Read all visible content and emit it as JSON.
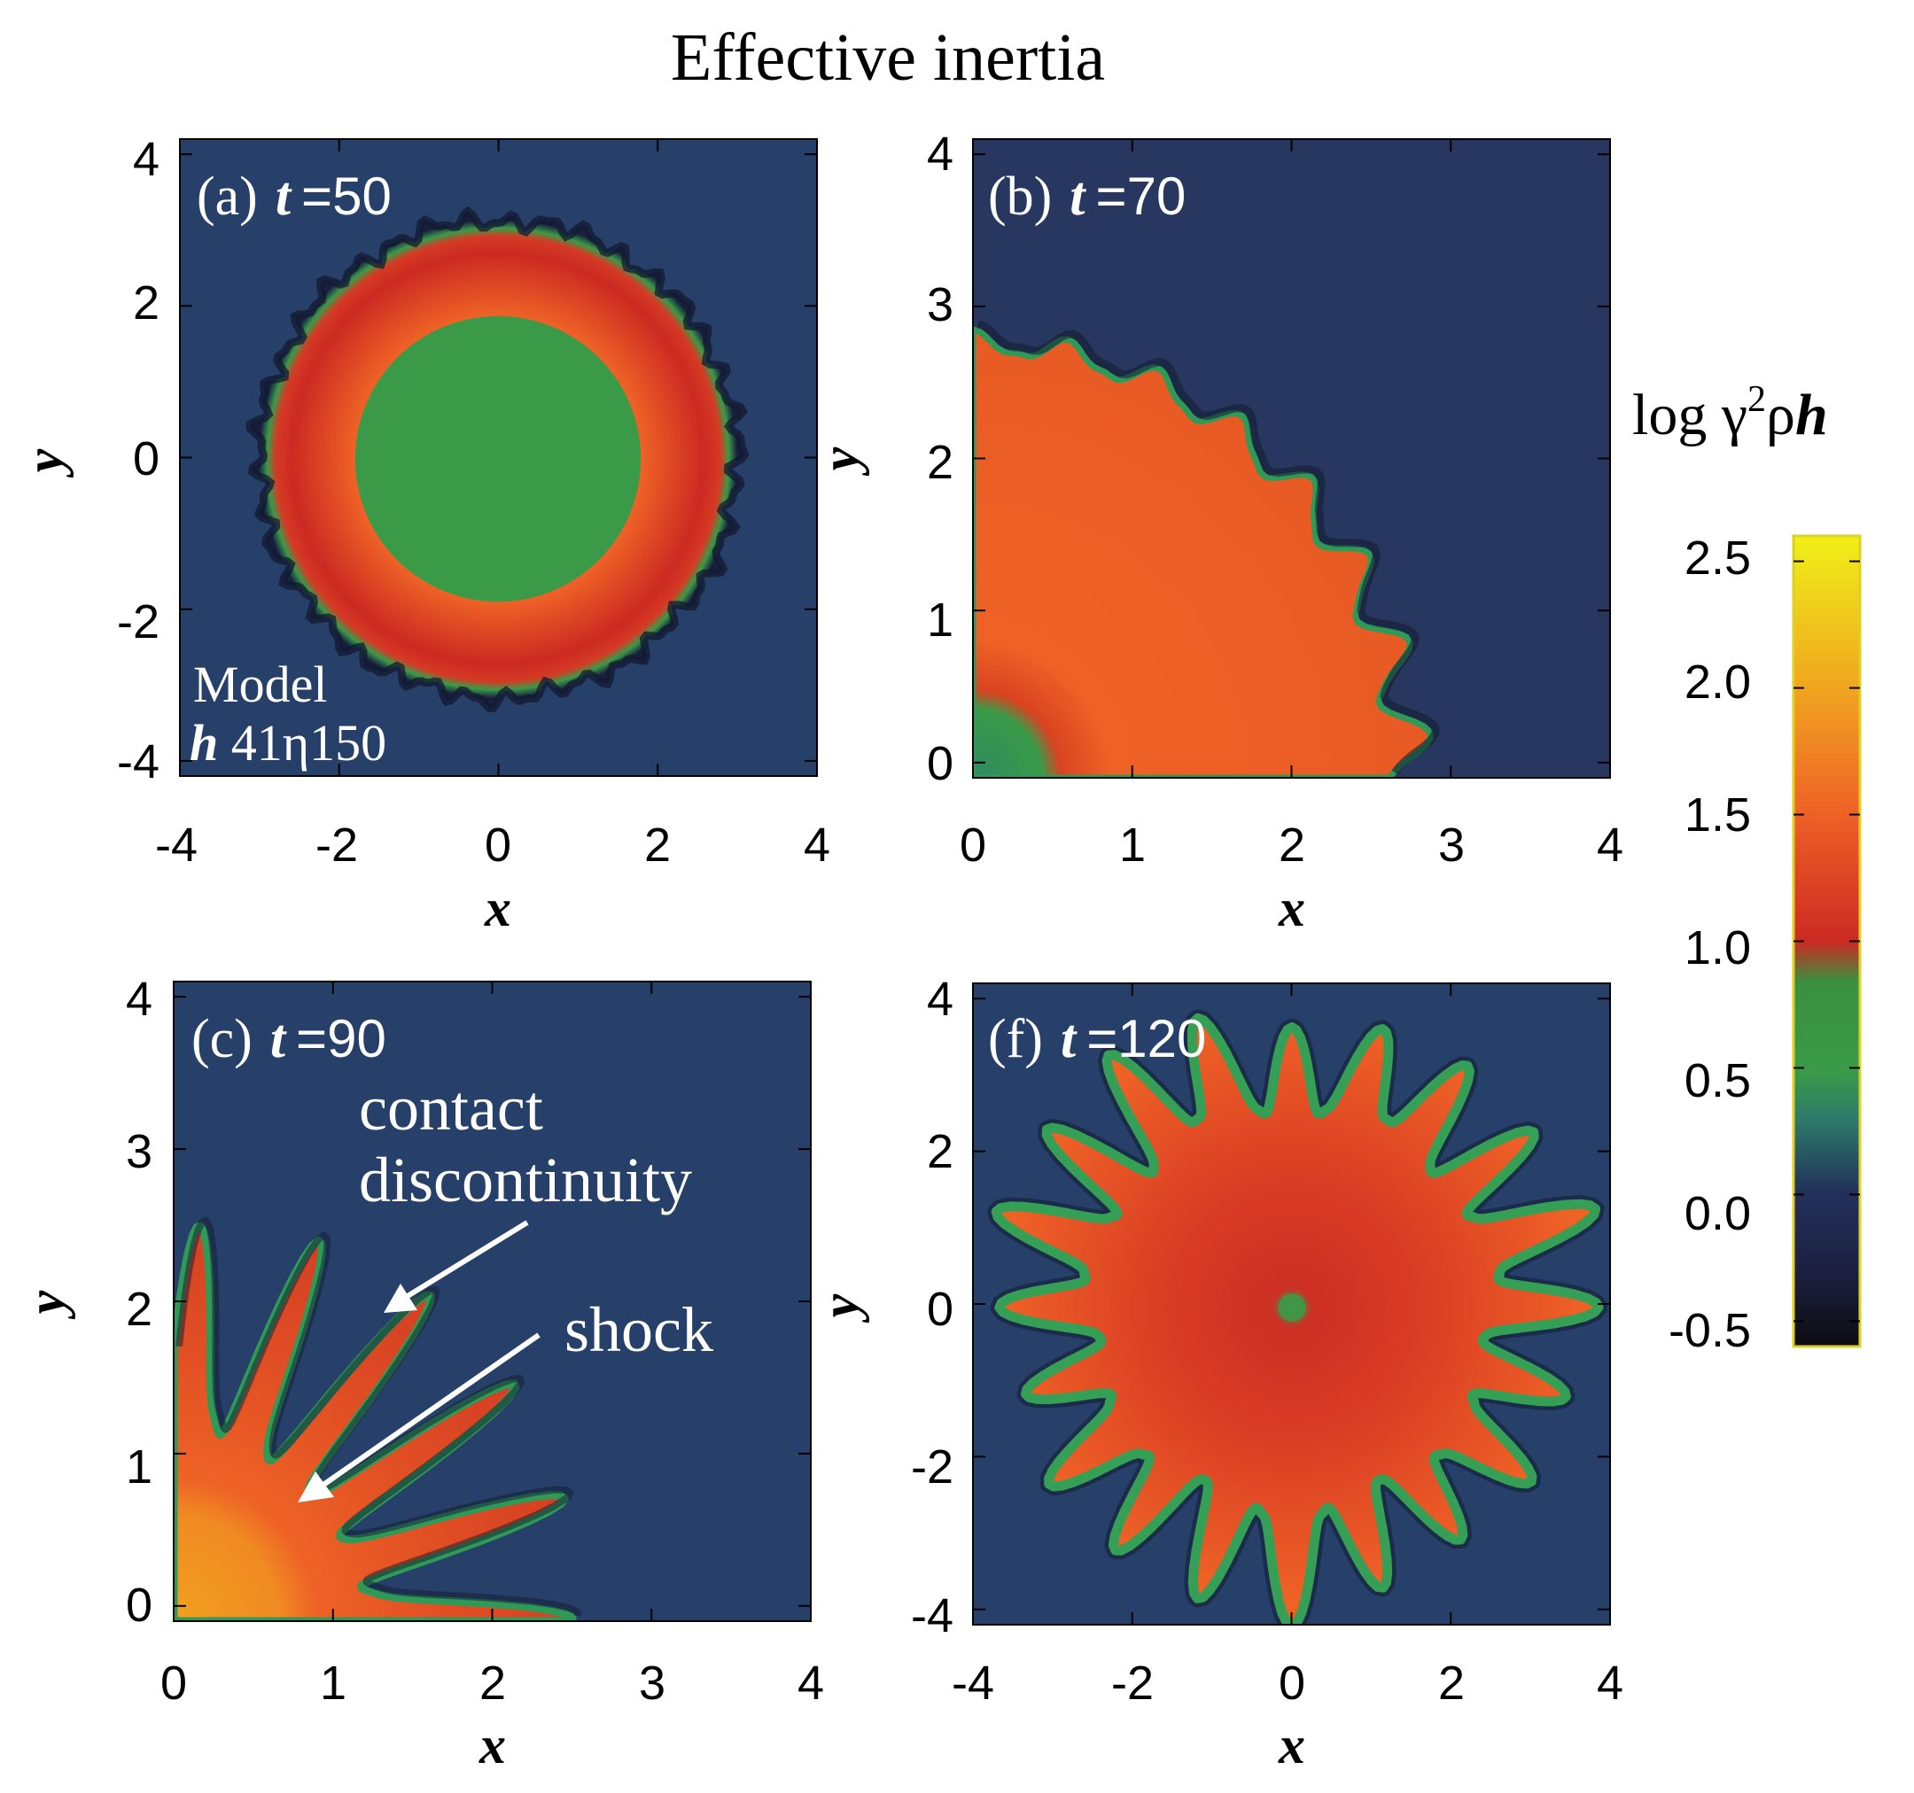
{
  "chart_data": {
    "title": "Effective inertia",
    "colorbar": {
      "label_prefix": "log γ",
      "label_sup": "2",
      "label_mid": "ρ",
      "label_end": "h",
      "range": [
        -0.6,
        2.6
      ],
      "ticks": [
        "2.5",
        "2.0",
        "1.5",
        "1.0",
        "0.5",
        "0.0",
        "-0.5"
      ],
      "tick_values": [
        2.5,
        2.0,
        1.5,
        1.0,
        0.5,
        0.0,
        -0.5
      ],
      "colors": {
        "min": "#0c0c10",
        "navy": "#22305a",
        "teal": "#2e7a6a",
        "green": "#3a9a48",
        "red": "#cc2a22",
        "orange": "#ee6226",
        "amber": "#f0a020",
        "yellow": "#f0f018"
      }
    },
    "panels": [
      {
        "id": "a",
        "type": "heatmap",
        "label_prefix": "(a)",
        "label_t": "t",
        "label_eq": "=50",
        "xlabel": "x",
        "ylabel": "y",
        "xlim": [
          -4,
          4
        ],
        "ylim": [
          -4.2,
          4.2
        ],
        "xticks": [
          "-4",
          "-2",
          "0",
          "2",
          "4"
        ],
        "xtick_values": [
          -4,
          -2,
          0,
          2,
          4
        ],
        "yticks": [
          "4",
          "2",
          "0",
          "-2",
          "-4"
        ],
        "ytick_values": [
          4,
          2,
          0,
          -2,
          -4
        ],
        "model_line1": "Model",
        "model_h": "h",
        "model_rest": "41η150",
        "structure": {
          "shock_radius": 1.8,
          "contact_radius": 3.0
        }
      },
      {
        "id": "b",
        "type": "heatmap",
        "label_prefix": "(b)",
        "label_t": "t",
        "label_eq": "=70",
        "xlabel": "x",
        "ylabel": "y",
        "xlim": [
          0,
          4
        ],
        "ylim": [
          -0.1,
          4.1
        ],
        "xticks": [
          "0",
          "1",
          "2",
          "3",
          "4"
        ],
        "xtick_values": [
          0,
          1,
          2,
          3,
          4
        ],
        "yticks": [
          "4",
          "3",
          "2",
          "1",
          "0"
        ],
        "ytick_values": [
          4,
          3,
          2,
          1,
          0
        ],
        "structure": {
          "shock_radius": 0.7,
          "contact_radius": 2.8
        }
      },
      {
        "id": "c",
        "type": "heatmap",
        "label_prefix": "(c)",
        "label_t": "t",
        "label_eq": "=90",
        "xlabel": "x",
        "ylabel": "y",
        "xlim": [
          0,
          4
        ],
        "ylim": [
          -0.1,
          4.1
        ],
        "xticks": [
          "0",
          "1",
          "2",
          "3",
          "4"
        ],
        "xtick_values": [
          0,
          1,
          2,
          3,
          4
        ],
        "yticks": [
          "4",
          "3",
          "2",
          "1",
          "0"
        ],
        "ytick_values": [
          4,
          3,
          2,
          1,
          0
        ],
        "annotation_contact_1": "contact",
        "annotation_contact_2": "discontinuity",
        "annotation_shock": "shock",
        "structure": {
          "shock_radius": 1.0,
          "contact_radius": 2.2
        }
      },
      {
        "id": "f",
        "type": "heatmap",
        "label_prefix": "(f)",
        "label_t": "t",
        "label_eq": "=120",
        "xlabel": "x",
        "ylabel": "y",
        "xlim": [
          -4,
          4
        ],
        "ylim": [
          -4.2,
          4.2
        ],
        "xticks": [
          "-4",
          "-2",
          "0",
          "2",
          "4"
        ],
        "xtick_values": [
          -4,
          -2,
          0,
          2,
          4
        ],
        "yticks": [
          "4",
          "2",
          "0",
          "-2",
          "-4"
        ],
        "ytick_values": [
          4,
          2,
          0,
          -2,
          -4
        ],
        "structure": {
          "core_radius": 2.4,
          "finger_tip_radius": 3.8,
          "fingers": 20
        }
      }
    ]
  }
}
